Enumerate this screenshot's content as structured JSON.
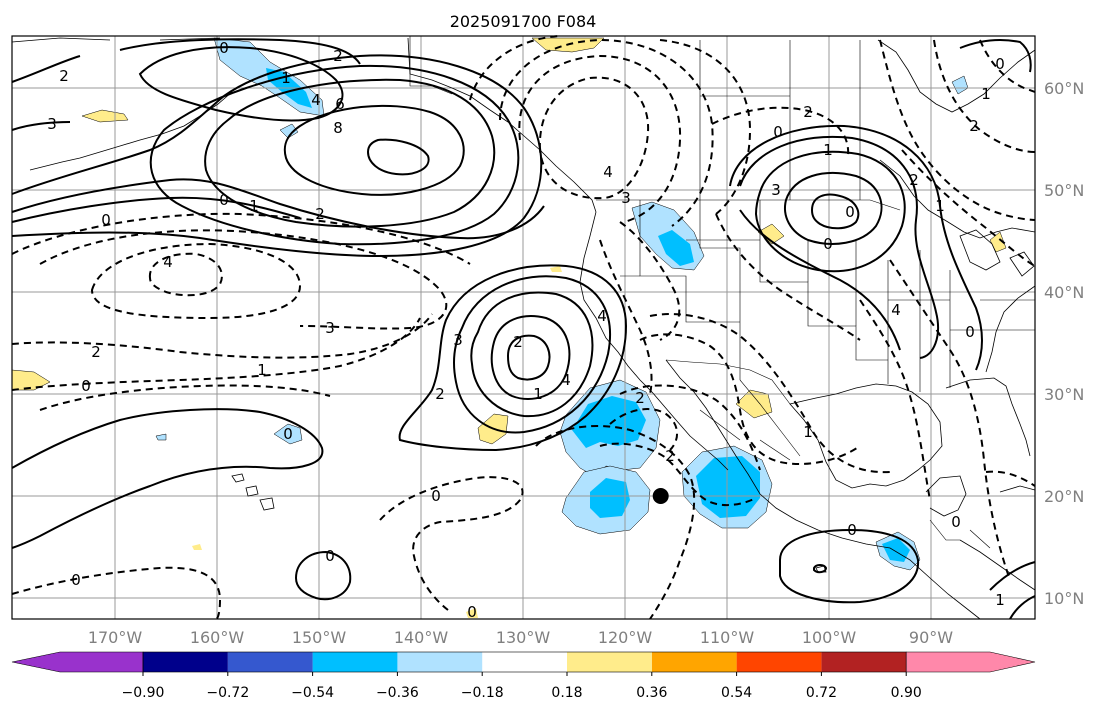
{
  "title": "2025091700 F084",
  "lon_axis": {
    "labels": [
      "170°W",
      "160°W",
      "150°W",
      "140°W",
      "130°W",
      "120°W",
      "110°W",
      "100°W",
      "90°W"
    ]
  },
  "lat_axis": {
    "labels": [
      "60°N",
      "50°N",
      "40°N",
      "30°N",
      "20°N",
      "10°N"
    ]
  },
  "colorbar": {
    "tick_labels": [
      "−0.90",
      "−0.72",
      "−0.54",
      "−0.36",
      "−0.18",
      "0.18",
      "0.36",
      "0.54",
      "0.72",
      "0.90"
    ],
    "colors": {
      "under": "#9932cc",
      "bins": [
        "#9932cc",
        "#00008b",
        "#3558cf",
        "#00bfff",
        "#b0e2ff",
        "#ffffff",
        "#ffec8b",
        "#ffa500",
        "#ff4500",
        "#b22222",
        "#ff88aa"
      ],
      "over": "#ff88aa"
    }
  },
  "contour_labels": [
    "2",
    "3",
    "0",
    "1",
    "2",
    "4",
    "6",
    "8",
    "0",
    "1",
    "2",
    "0",
    "4",
    "3",
    "2",
    "1",
    "0",
    "2",
    "3",
    "2",
    "1",
    "4",
    "0",
    "0",
    "4",
    "3",
    "2",
    "0",
    "2",
    "1",
    "0",
    "4",
    "0",
    "2",
    "1",
    "0",
    "0",
    "3",
    "4",
    "2",
    "1",
    "0",
    "0",
    "0",
    "1",
    "0",
    "1",
    "0",
    "2"
  ],
  "marker": {
    "lon": -116.5,
    "lat": 20.0,
    "label": ""
  },
  "shading_colors": {
    "neg_light": "#b0e2ff",
    "neg_mid": "#00bfff",
    "pos_light": "#ffec8b"
  }
}
